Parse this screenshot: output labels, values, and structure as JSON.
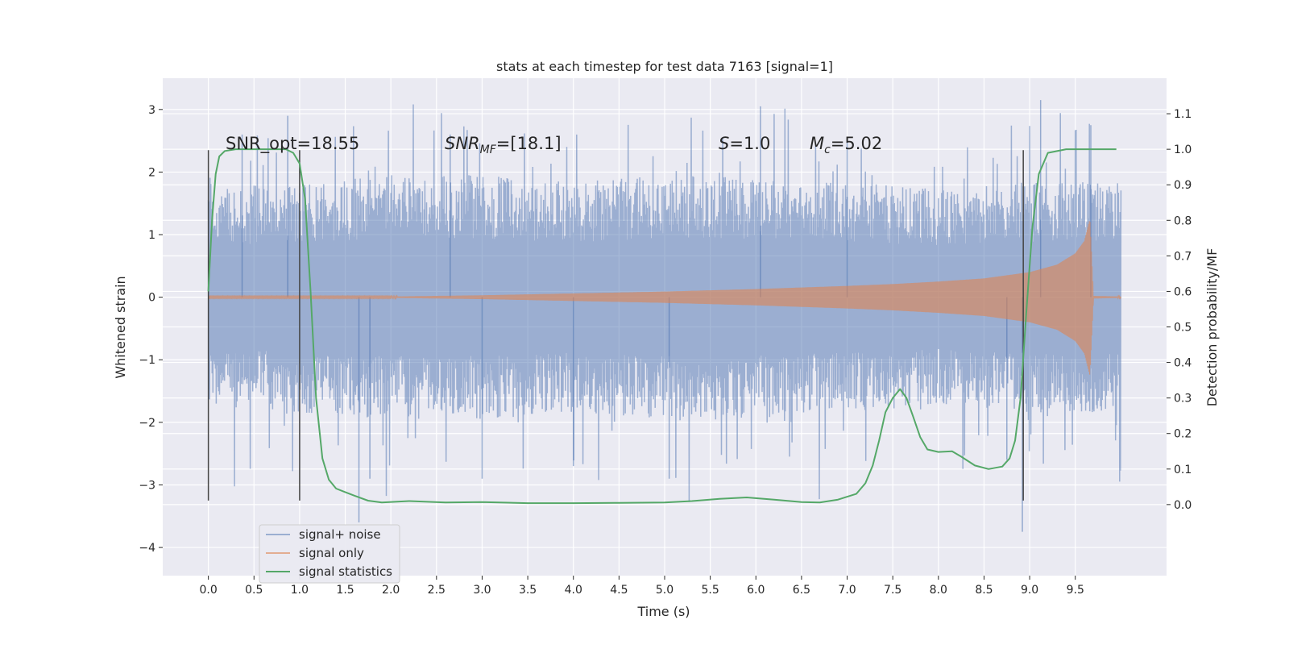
{
  "chart_data": {
    "type": "line",
    "title": "stats at each timestep for test data 7163 [signal=1]",
    "xlabel": "Time (s)",
    "ylabel_left": "Whitened strain",
    "ylabel_right": "Detection probability/MF",
    "xlim": [
      -0.5,
      10.5
    ],
    "ylim_left": [
      -4.45,
      3.5
    ],
    "ylim_right": [
      -0.2,
      1.2
    ],
    "x_ticks": [
      "0.0",
      "0.5",
      "1.0",
      "1.5",
      "2.0",
      "2.5",
      "3.0",
      "3.5",
      "4.0",
      "4.5",
      "5.0",
      "5.5",
      "6.0",
      "6.5",
      "7.0",
      "7.5",
      "8.0",
      "8.5",
      "9.0",
      "9.5"
    ],
    "y_ticks_left": [
      "3",
      "2",
      "1",
      "0",
      "−1",
      "−2",
      "−3",
      "−4"
    ],
    "y_ticks_right": [
      "1.1",
      "1.0",
      "0.9",
      "0.8",
      "0.7",
      "0.6",
      "0.5",
      "0.4",
      "0.3",
      "0.2",
      "0.1",
      "0.0"
    ],
    "grid": true,
    "legend_placement": "lower-left",
    "annotations": {
      "snr_opt": "SNR_opt=18.55",
      "snr_mf_prefix": "SNR",
      "snr_mf_sub": "MF",
      "snr_mf_suffix": "=[18.1]",
      "s_label": "S",
      "s_value": "=1.0",
      "mc_label": "M",
      "mc_sub": "c",
      "mc_value": "=5.02"
    },
    "series": [
      {
        "name": "signal+ noise",
        "color": "#4c72b0",
        "axis": "left",
        "envelope": {
          "x": [
            0,
            1,
            2,
            3,
            4,
            5,
            6,
            7,
            8,
            9,
            10
          ],
          "upper": [
            1.5,
            1.6,
            1.7,
            1.7,
            1.6,
            1.7,
            1.7,
            1.6,
            1.5,
            1.6,
            1.6
          ],
          "lower": [
            -1.5,
            -1.6,
            -1.7,
            -1.7,
            -1.6,
            -1.7,
            -1.7,
            -1.6,
            -1.5,
            -1.6,
            -1.6
          ]
        },
        "peaks": [
          {
            "x": 0.37,
            "y": 2.6
          },
          {
            "x": 0.87,
            "y": 2.9
          },
          {
            "x": 1.65,
            "y": -3.6
          },
          {
            "x": 1.77,
            "y": -2.9
          },
          {
            "x": 2.65,
            "y": 2.6
          },
          {
            "x": 3.0,
            "y": -2.9
          },
          {
            "x": 4.0,
            "y": -2.7
          },
          {
            "x": 5.05,
            "y": -2.9
          },
          {
            "x": 6.05,
            "y": 3.05
          },
          {
            "x": 7.0,
            "y": 2.55
          },
          {
            "x": 8.75,
            "y": -2.6
          },
          {
            "x": 8.92,
            "y": -3.75
          },
          {
            "x": 9.12,
            "y": 3.15
          },
          {
            "x": 9.67,
            "y": 2.75
          }
        ]
      },
      {
        "name": "signal only",
        "color": "#dd8452",
        "axis": "left",
        "x": [
          0,
          1,
          2,
          3,
          4,
          5,
          6,
          7,
          7.5,
          8,
          8.5,
          9,
          9.3,
          9.5,
          9.6,
          9.66,
          9.7,
          10
        ],
        "amplitude": [
          0.01,
          0.01,
          0.01,
          0.03,
          0.06,
          0.09,
          0.13,
          0.18,
          0.21,
          0.25,
          0.3,
          0.4,
          0.52,
          0.7,
          0.9,
          1.25,
          0.02,
          0.01
        ]
      },
      {
        "name": "signal statistics",
        "color": "#55a868",
        "axis": "right",
        "x": [
          0.0,
          0.04,
          0.08,
          0.12,
          0.18,
          0.3,
          0.5,
          0.7,
          0.85,
          0.93,
          1.0,
          1.06,
          1.12,
          1.18,
          1.25,
          1.32,
          1.4,
          1.5,
          1.6,
          1.75,
          1.9,
          2.2,
          2.6,
          3.0,
          3.5,
          4.0,
          4.5,
          5.0,
          5.3,
          5.6,
          5.9,
          6.2,
          6.5,
          6.7,
          6.9,
          7.1,
          7.2,
          7.28,
          7.35,
          7.42,
          7.5,
          7.58,
          7.65,
          7.72,
          7.8,
          7.88,
          8.0,
          8.15,
          8.25,
          8.4,
          8.55,
          8.7,
          8.78,
          8.84,
          8.9,
          8.96,
          9.03,
          9.1,
          9.2,
          9.4,
          9.7,
          9.95
        ],
        "y": [
          0.6,
          0.8,
          0.93,
          0.98,
          0.995,
          1.0,
          1.0,
          1.0,
          1.0,
          0.99,
          0.96,
          0.86,
          0.6,
          0.3,
          0.13,
          0.07,
          0.045,
          0.035,
          0.025,
          0.011,
          0.006,
          0.01,
          0.006,
          0.007,
          0.004,
          0.004,
          0.005,
          0.006,
          0.01,
          0.016,
          0.02,
          0.014,
          0.007,
          0.006,
          0.014,
          0.03,
          0.06,
          0.11,
          0.18,
          0.26,
          0.3,
          0.325,
          0.3,
          0.25,
          0.19,
          0.155,
          0.148,
          0.15,
          0.135,
          0.11,
          0.1,
          0.107,
          0.13,
          0.18,
          0.3,
          0.53,
          0.78,
          0.93,
          0.99,
          1.0,
          1.0,
          1.0
        ]
      }
    ],
    "markers": {
      "x": [
        0.0,
        1.0,
        8.93
      ]
    }
  }
}
